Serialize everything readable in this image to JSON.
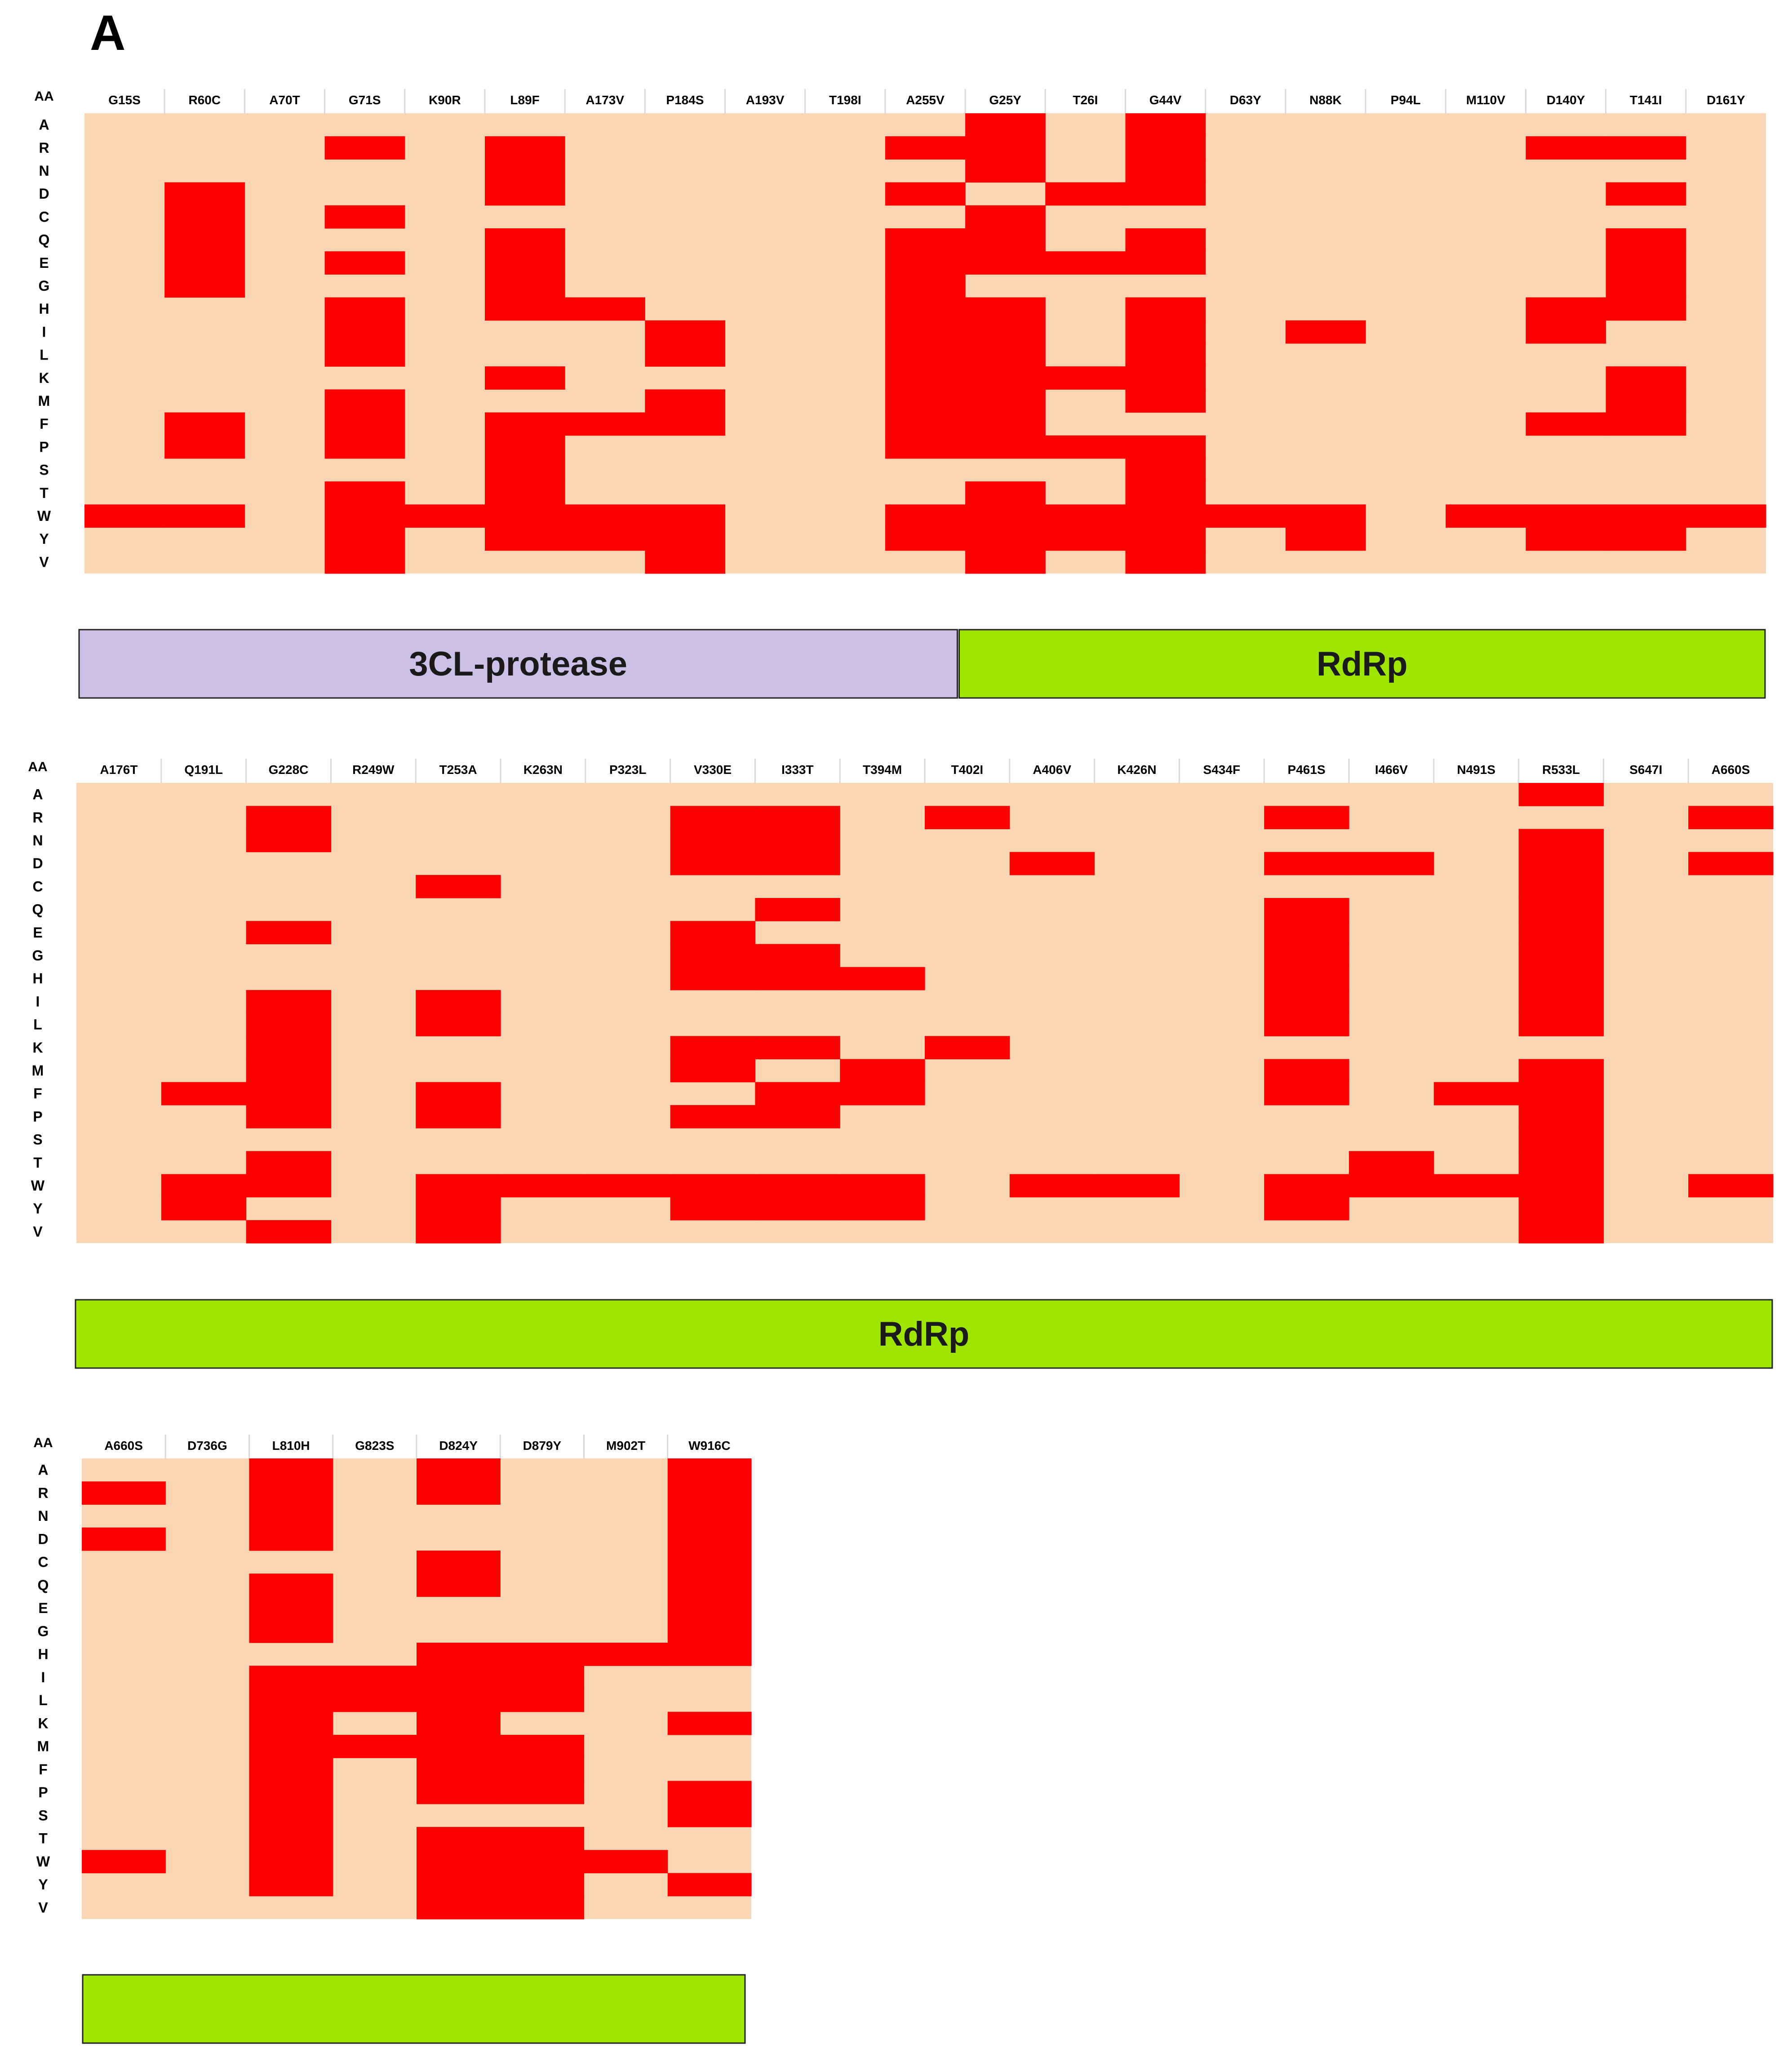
{
  "panel_letter": "A",
  "colors": {
    "background": "#fcd5b4",
    "hit": "#ff0000",
    "protease": "#ccc0e6",
    "rdrp": "#9ee600",
    "grid": "#ffffff"
  },
  "chart_data": {
    "type": "heatmap",
    "row_header": "AA",
    "rows": [
      "A",
      "R",
      "N",
      "D",
      "C",
      "Q",
      "E",
      "G",
      "H",
      "I",
      "L",
      "K",
      "M",
      "F",
      "P",
      "S",
      "T",
      "W",
      "Y",
      "V"
    ],
    "panels": [
      {
        "columns": [
          "G15S",
          "R60C",
          "A70T",
          "G71S",
          "K90R",
          "L89F",
          "A173V",
          "P184S",
          "A193V",
          "T198I",
          "A255V",
          "G25Y",
          "T26I",
          "G44V",
          "D63Y",
          "N88K",
          "P94L",
          "M110V",
          "D140Y",
          "T141I",
          "D161Y"
        ],
        "cells": [
          [
            0,
            0,
            0,
            0,
            0,
            0,
            0,
            0,
            0,
            0,
            0,
            1,
            0,
            1,
            0,
            0,
            0,
            0,
            0,
            0,
            0
          ],
          [
            0,
            0,
            0,
            1,
            0,
            1,
            0,
            0,
            0,
            0,
            1,
            1,
            0,
            1,
            0,
            0,
            0,
            0,
            1,
            1,
            0
          ],
          [
            0,
            0,
            0,
            0,
            0,
            1,
            0,
            0,
            0,
            0,
            0,
            1,
            0,
            1,
            0,
            0,
            0,
            0,
            0,
            0,
            0
          ],
          [
            0,
            1,
            0,
            0,
            0,
            1,
            0,
            0,
            0,
            0,
            1,
            0,
            1,
            1,
            0,
            0,
            0,
            0,
            0,
            1,
            0
          ],
          [
            0,
            1,
            0,
            1,
            0,
            0,
            0,
            0,
            0,
            0,
            0,
            1,
            0,
            0,
            0,
            0,
            0,
            0,
            0,
            0,
            0
          ],
          [
            0,
            1,
            0,
            0,
            0,
            1,
            0,
            0,
            0,
            0,
            1,
            1,
            0,
            1,
            0,
            0,
            0,
            0,
            0,
            1,
            0
          ],
          [
            0,
            1,
            0,
            1,
            0,
            1,
            0,
            0,
            0,
            0,
            1,
            1,
            1,
            1,
            0,
            0,
            0,
            0,
            0,
            1,
            0
          ],
          [
            0,
            1,
            0,
            0,
            0,
            1,
            0,
            0,
            0,
            0,
            1,
            0,
            0,
            0,
            0,
            0,
            0,
            0,
            0,
            1,
            0
          ],
          [
            0,
            0,
            0,
            1,
            0,
            1,
            1,
            0,
            0,
            0,
            1,
            1,
            0,
            1,
            0,
            0,
            0,
            0,
            1,
            1,
            0
          ],
          [
            0,
            0,
            0,
            1,
            0,
            0,
            0,
            1,
            0,
            0,
            1,
            1,
            0,
            1,
            0,
            1,
            0,
            0,
            1,
            0,
            0
          ],
          [
            0,
            0,
            0,
            1,
            0,
            0,
            0,
            1,
            0,
            0,
            1,
            1,
            0,
            1,
            0,
            0,
            0,
            0,
            0,
            0,
            0
          ],
          [
            0,
            0,
            0,
            0,
            0,
            1,
            0,
            0,
            0,
            0,
            1,
            1,
            1,
            1,
            0,
            0,
            0,
            0,
            0,
            1,
            0
          ],
          [
            0,
            0,
            0,
            1,
            0,
            0,
            0,
            1,
            0,
            0,
            1,
            1,
            0,
            1,
            0,
            0,
            0,
            0,
            0,
            1,
            0
          ],
          [
            0,
            1,
            0,
            1,
            0,
            1,
            1,
            1,
            0,
            0,
            1,
            1,
            0,
            0,
            0,
            0,
            0,
            0,
            1,
            1,
            0
          ],
          [
            0,
            1,
            0,
            1,
            0,
            1,
            0,
            0,
            0,
            0,
            1,
            1,
            1,
            1,
            0,
            0,
            0,
            0,
            0,
            0,
            0
          ],
          [
            0,
            0,
            0,
            0,
            0,
            1,
            0,
            0,
            0,
            0,
            0,
            0,
            0,
            1,
            0,
            0,
            0,
            0,
            0,
            0,
            0
          ],
          [
            0,
            0,
            0,
            1,
            0,
            1,
            0,
            0,
            0,
            0,
            0,
            1,
            0,
            1,
            0,
            0,
            0,
            0,
            0,
            0,
            0
          ],
          [
            1,
            1,
            0,
            1,
            1,
            1,
            1,
            1,
            0,
            0,
            1,
            1,
            1,
            1,
            1,
            1,
            0,
            1,
            1,
            1,
            1
          ],
          [
            0,
            0,
            0,
            1,
            0,
            1,
            1,
            1,
            0,
            0,
            1,
            1,
            1,
            1,
            0,
            1,
            0,
            0,
            1,
            1,
            0
          ],
          [
            0,
            0,
            0,
            1,
            0,
            0,
            0,
            1,
            0,
            0,
            0,
            1,
            0,
            1,
            0,
            0,
            0,
            0,
            0,
            0,
            0
          ]
        ],
        "domains": [
          {
            "label": "3CL-protease",
            "color": "protease",
            "span": [
              0,
              10.95
            ]
          },
          {
            "label": "RdRp",
            "color": "rdrp",
            "span": [
              10.95,
              21
            ]
          }
        ]
      },
      {
        "columns": [
          "A176T",
          "Q191L",
          "G228C",
          "R249W",
          "T253A",
          "K263N",
          "P323L",
          "V330E",
          "I333T",
          "T394M",
          "T402I",
          "A406V",
          "K426N",
          "S434F",
          "P461S",
          "I466V",
          "N491S",
          "R533L",
          "S647I",
          "A660S"
        ],
        "cells": [
          [
            0,
            0,
            0,
            0,
            0,
            0,
            0,
            0,
            0,
            0,
            0,
            0,
            0,
            0,
            0,
            0,
            0,
            1,
            0,
            0
          ],
          [
            0,
            0,
            1,
            0,
            0,
            0,
            0,
            1,
            1,
            0,
            1,
            0,
            0,
            0,
            1,
            0,
            0,
            0,
            0,
            1
          ],
          [
            0,
            0,
            1,
            0,
            0,
            0,
            0,
            1,
            1,
            0,
            0,
            0,
            0,
            0,
            0,
            0,
            0,
            1,
            0,
            0
          ],
          [
            0,
            0,
            0,
            0,
            0,
            0,
            0,
            1,
            1,
            0,
            0,
            1,
            0,
            0,
            1,
            1,
            0,
            1,
            0,
            1
          ],
          [
            0,
            0,
            0,
            0,
            1,
            0,
            0,
            0,
            0,
            0,
            0,
            0,
            0,
            0,
            0,
            0,
            0,
            1,
            0,
            0
          ],
          [
            0,
            0,
            0,
            0,
            0,
            0,
            0,
            0,
            1,
            0,
            0,
            0,
            0,
            0,
            1,
            0,
            0,
            1,
            0,
            0
          ],
          [
            0,
            0,
            1,
            0,
            0,
            0,
            0,
            1,
            0,
            0,
            0,
            0,
            0,
            0,
            1,
            0,
            0,
            1,
            0,
            0
          ],
          [
            0,
            0,
            0,
            0,
            0,
            0,
            0,
            1,
            1,
            0,
            0,
            0,
            0,
            0,
            1,
            0,
            0,
            1,
            0,
            0
          ],
          [
            0,
            0,
            0,
            0,
            0,
            0,
            0,
            1,
            1,
            1,
            0,
            0,
            0,
            0,
            1,
            0,
            0,
            1,
            0,
            0
          ],
          [
            0,
            0,
            1,
            0,
            1,
            0,
            0,
            0,
            0,
            0,
            0,
            0,
            0,
            0,
            1,
            0,
            0,
            1,
            0,
            0
          ],
          [
            0,
            0,
            1,
            0,
            1,
            0,
            0,
            0,
            0,
            0,
            0,
            0,
            0,
            0,
            1,
            0,
            0,
            1,
            0,
            0
          ],
          [
            0,
            0,
            1,
            0,
            0,
            0,
            0,
            1,
            1,
            0,
            1,
            0,
            0,
            0,
            0,
            0,
            0,
            0,
            0,
            0
          ],
          [
            0,
            0,
            1,
            0,
            0,
            0,
            0,
            1,
            0,
            1,
            0,
            0,
            0,
            0,
            1,
            0,
            0,
            1,
            0,
            0
          ],
          [
            0,
            1,
            1,
            0,
            1,
            0,
            0,
            0,
            1,
            1,
            0,
            0,
            0,
            0,
            1,
            0,
            1,
            1,
            0,
            0
          ],
          [
            0,
            0,
            1,
            0,
            1,
            0,
            0,
            1,
            1,
            0,
            0,
            0,
            0,
            0,
            0,
            0,
            0,
            1,
            0,
            0
          ],
          [
            0,
            0,
            0,
            0,
            0,
            0,
            0,
            0,
            0,
            0,
            0,
            0,
            0,
            0,
            0,
            0,
            0,
            1,
            0,
            0
          ],
          [
            0,
            0,
            1,
            0,
            0,
            0,
            0,
            0,
            0,
            0,
            0,
            0,
            0,
            0,
            0,
            1,
            0,
            1,
            0,
            0
          ],
          [
            0,
            1,
            1,
            0,
            1,
            1,
            1,
            1,
            1,
            1,
            0,
            1,
            1,
            0,
            1,
            1,
            1,
            1,
            0,
            1
          ],
          [
            0,
            1,
            0,
            0,
            1,
            0,
            0,
            1,
            1,
            1,
            0,
            0,
            0,
            0,
            1,
            0,
            0,
            1,
            0,
            0
          ],
          [
            0,
            0,
            1,
            0,
            1,
            0,
            0,
            0,
            0,
            0,
            0,
            0,
            0,
            0,
            0,
            0,
            0,
            1,
            0,
            0
          ]
        ],
        "domains": [
          {
            "label": "RdRp",
            "color": "rdrp",
            "span": [
              0,
              20
            ]
          }
        ]
      },
      {
        "columns": [
          "A660S",
          "D736G",
          "L810H",
          "G823S",
          "D824Y",
          "D879Y",
          "M902T",
          "W916C"
        ],
        "cells": [
          [
            0,
            0,
            1,
            0,
            1,
            0,
            0,
            1
          ],
          [
            1,
            0,
            1,
            0,
            1,
            0,
            0,
            1
          ],
          [
            0,
            0,
            1,
            0,
            0,
            0,
            0,
            1
          ],
          [
            1,
            0,
            1,
            0,
            0,
            0,
            0,
            1
          ],
          [
            0,
            0,
            0,
            0,
            1,
            0,
            0,
            1
          ],
          [
            0,
            0,
            1,
            0,
            1,
            0,
            0,
            1
          ],
          [
            0,
            0,
            1,
            0,
            0,
            0,
            0,
            1
          ],
          [
            0,
            0,
            1,
            0,
            0,
            0,
            0,
            1
          ],
          [
            0,
            0,
            0,
            0,
            1,
            1,
            1,
            1
          ],
          [
            0,
            0,
            1,
            1,
            1,
            1,
            0,
            0
          ],
          [
            0,
            0,
            1,
            1,
            1,
            1,
            0,
            0
          ],
          [
            0,
            0,
            1,
            0,
            1,
            0,
            0,
            1
          ],
          [
            0,
            0,
            1,
            1,
            1,
            1,
            0,
            0
          ],
          [
            0,
            0,
            1,
            0,
            1,
            1,
            0,
            0
          ],
          [
            0,
            0,
            1,
            0,
            1,
            1,
            0,
            1
          ],
          [
            0,
            0,
            1,
            0,
            0,
            0,
            0,
            1
          ],
          [
            0,
            0,
            1,
            0,
            1,
            1,
            0,
            0
          ],
          [
            1,
            0,
            1,
            0,
            1,
            1,
            1,
            0
          ],
          [
            0,
            0,
            1,
            0,
            1,
            1,
            0,
            1
          ],
          [
            0,
            0,
            0,
            0,
            1,
            1,
            0,
            0
          ]
        ],
        "domains": [
          {
            "label": "",
            "color": "rdrp",
            "span": [
              0,
              8
            ]
          }
        ]
      }
    ]
  }
}
